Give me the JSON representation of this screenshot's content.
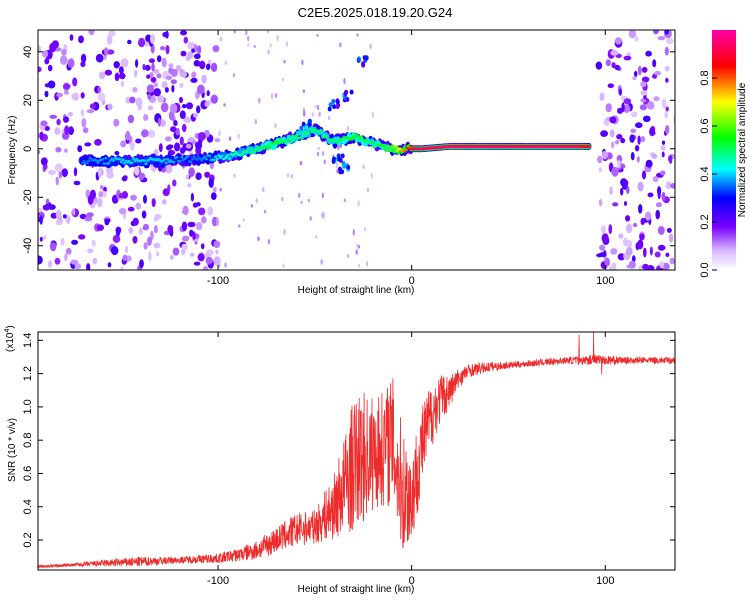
{
  "title": "C2E5.2025.018.19.20.G24",
  "chart_data": [
    {
      "type": "heatmap",
      "xlabel": "Height of straight line (km)",
      "ylabel": "Frequency (Hz)",
      "xlim": [
        -193,
        136
      ],
      "ylim": [
        -50,
        49
      ],
      "xticks": [
        -100,
        0,
        100
      ],
      "xtick_labels": [
        "-100",
        "0",
        "100"
      ],
      "yticks": [
        -40,
        -20,
        0,
        20,
        40
      ],
      "ytick_labels": [
        "-40",
        "-20",
        "0",
        "20",
        "40"
      ],
      "grid": false,
      "colorbar": {
        "label": "Normalized spectral amplitude",
        "range": [
          0.0,
          1.0
        ],
        "ticks": [
          0.0,
          0.2,
          0.4,
          0.6,
          0.8
        ],
        "tick_labels": [
          "0.0",
          "0.2",
          "0.4",
          "0.6",
          "0.8"
        ],
        "colormap": [
          "#ffffff",
          "#7a00ff",
          "#0000ff",
          "#00ffff",
          "#00ff00",
          "#ffff00",
          "#ff0000",
          "#ff00ff"
        ]
      },
      "trace": {
        "x": [
          -170,
          -150,
          -130,
          -110,
          -95,
          -80,
          -70,
          -60,
          -50,
          -40,
          -30,
          -20,
          -10,
          0,
          5,
          20,
          40,
          60,
          80,
          92
        ],
        "y": [
          -5,
          -5,
          -5,
          -4,
          -3,
          0,
          2,
          5,
          8,
          3,
          5,
          2,
          0,
          0,
          0,
          1,
          1,
          1,
          1,
          1
        ],
        "amplitude": [
          0.35,
          0.4,
          0.4,
          0.35,
          0.45,
          0.5,
          0.55,
          0.5,
          0.5,
          0.5,
          0.55,
          0.5,
          0.6,
          0.9,
          0.95,
          0.95,
          0.95,
          0.95,
          0.95,
          0.9
        ]
      },
      "noise_regions": [
        [
          -193,
          -100
        ],
        [
          96,
          136
        ]
      ]
    },
    {
      "type": "line",
      "xlabel": "Height of straight line (km)",
      "ylabel": "SNR (10 * v/v)",
      "exponent_label": "(x10",
      "exponent_value": "4",
      "exponent_close": ")",
      "xlim": [
        -193,
        136
      ],
      "ylim": [
        0.02,
        1.45
      ],
      "xticks": [
        -100,
        0,
        100
      ],
      "xtick_labels": [
        "-100",
        "0",
        "100"
      ],
      "yticks": [
        0.2,
        0.4,
        0.6,
        0.8,
        1.0,
        1.2,
        1.4
      ],
      "ytick_labels": [
        "0.2",
        "0.4",
        "0.6",
        "0.8",
        "1.0",
        "1.2",
        "1.4"
      ],
      "series": [
        {
          "color": "#ee2a2a",
          "x": [
            -193,
            -175,
            -160,
            -140,
            -120,
            -100,
            -90,
            -80,
            -70,
            -60,
            -50,
            -40,
            -30,
            -25,
            -20,
            -15,
            -10,
            -5,
            0,
            5,
            10,
            15,
            20,
            25,
            30,
            40,
            50,
            60,
            70,
            80,
            90,
            95,
            100,
            110,
            120,
            136
          ],
          "y": [
            0.04,
            0.05,
            0.06,
            0.07,
            0.08,
            0.09,
            0.11,
            0.14,
            0.2,
            0.26,
            0.28,
            0.4,
            0.65,
            0.7,
            0.72,
            0.75,
            0.8,
            0.5,
            0.45,
            0.75,
            0.95,
            1.05,
            1.1,
            1.18,
            1.22,
            1.24,
            1.25,
            1.26,
            1.27,
            1.28,
            1.28,
            1.29,
            1.28,
            1.28,
            1.28,
            1.28
          ],
          "spread": [
            0.01,
            0.01,
            0.02,
            0.03,
            0.02,
            0.03,
            0.04,
            0.06,
            0.08,
            0.1,
            0.1,
            0.2,
            0.4,
            0.4,
            0.35,
            0.35,
            0.4,
            0.4,
            0.3,
            0.25,
            0.2,
            0.15,
            0.1,
            0.06,
            0.04,
            0.03,
            0.02,
            0.02,
            0.02,
            0.02,
            0.03,
            0.03,
            0.03,
            0.02,
            0.02,
            0.02
          ]
        }
      ]
    }
  ]
}
